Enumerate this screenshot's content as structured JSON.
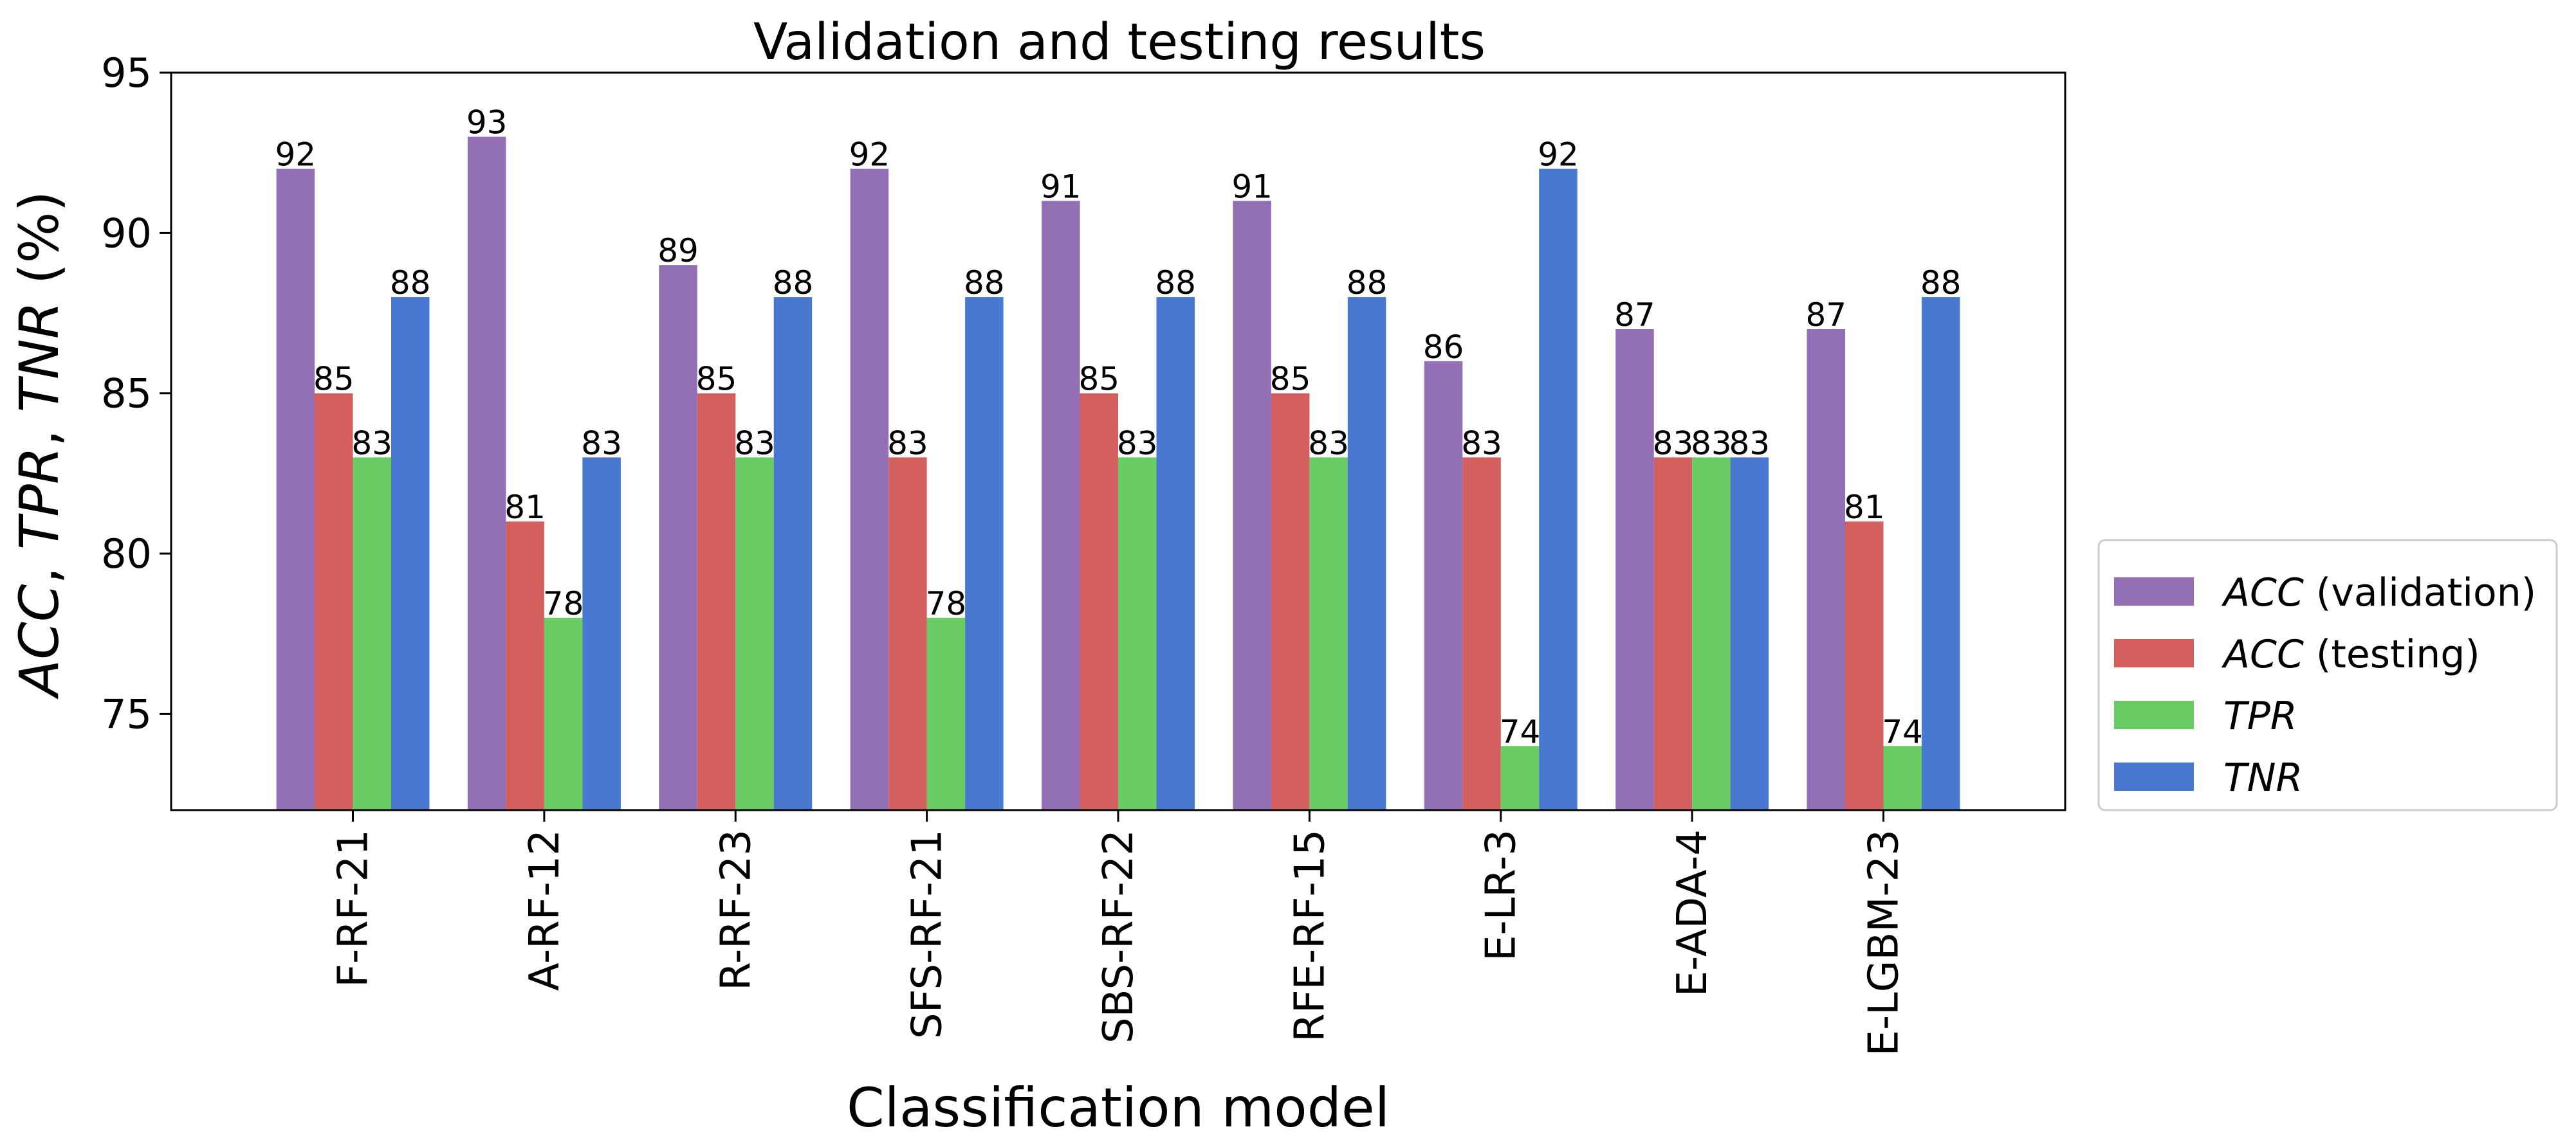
{
  "chart_data": {
    "type": "bar",
    "title": "Validation and testing results",
    "xlabel": "Classification model",
    "ylabel": {
      "parts": [
        {
          "text": "ACC",
          "italic": true
        },
        {
          "text": ", ",
          "italic": false
        },
        {
          "text": "TPR",
          "italic": true
        },
        {
          "text": ", ",
          "italic": false
        },
        {
          "text": "TNR",
          "italic": true
        },
        {
          "text": " (%)",
          "italic": false
        }
      ]
    },
    "ylim": [
      72,
      95
    ],
    "yticks": [
      75,
      80,
      85,
      90,
      95
    ],
    "grid": false,
    "legend_position": "outside right, bottom",
    "categories": [
      "F-RF-21",
      "A-RF-12",
      "R-RF-23",
      "SFS-RF-21",
      "SBS-RF-22",
      "RFE-RF-15",
      "E-LR-3",
      "E-ADA-4",
      "E-LGBM-23"
    ],
    "series": [
      {
        "name": "ACC (validation)",
        "legend_italic": "ACC",
        "legend_plain": " (validation)",
        "color": "#9370b6",
        "values": [
          92,
          93,
          89,
          92,
          91,
          91,
          86,
          87,
          87
        ]
      },
      {
        "name": "ACC (testing)",
        "legend_italic": "ACC",
        "legend_plain": " (testing)",
        "color": "#d45f5f",
        "values": [
          85,
          81,
          85,
          83,
          85,
          85,
          83,
          83,
          81
        ]
      },
      {
        "name": "TPR",
        "legend_italic": "TPR",
        "legend_plain": "",
        "color": "#6acc64",
        "values": [
          83,
          78,
          83,
          78,
          83,
          83,
          74,
          83,
          74
        ]
      },
      {
        "name": "TNR",
        "legend_italic": "TNR",
        "legend_plain": "",
        "color": "#4878d0",
        "values": [
          88,
          83,
          88,
          88,
          88,
          88,
          92,
          83,
          88
        ]
      }
    ]
  }
}
